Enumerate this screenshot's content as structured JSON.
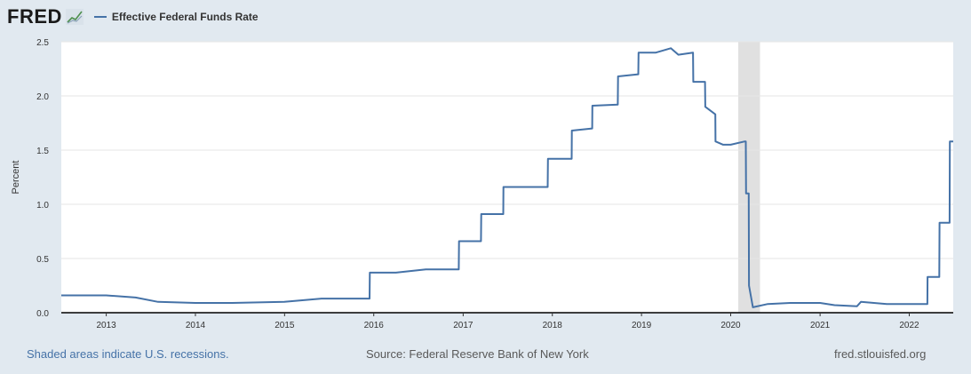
{
  "header": {
    "logo_text": "FRED",
    "series_label": "Effective Federal Funds Rate"
  },
  "footer": {
    "recession_note": "Shaded areas indicate U.S. recessions.",
    "source": "Source: Federal Reserve Bank of New York",
    "site": "fred.stlouisfed.org"
  },
  "colors": {
    "series": "#4572a7",
    "background": "#e1e9f0",
    "recession_shade": "#e0e0e0"
  },
  "chart_data": {
    "type": "line",
    "title": "",
    "xlabel": "",
    "ylabel": "Percent",
    "ylim": [
      0,
      2.5
    ],
    "yticks": [
      0.0,
      0.5,
      1.0,
      1.5,
      2.0,
      2.5
    ],
    "ytick_labels": [
      "0.0",
      "0.5",
      "1.0",
      "1.5",
      "2.0",
      "2.5"
    ],
    "xlim": [
      "2012-07-01",
      "2022-06-30"
    ],
    "xticks": [
      2013,
      2014,
      2015,
      2016,
      2017,
      2018,
      2019,
      2020,
      2021,
      2022
    ],
    "xtick_labels": [
      "2013",
      "2014",
      "2015",
      "2016",
      "2017",
      "2018",
      "2019",
      "2020",
      "2021",
      "2022"
    ],
    "grid": true,
    "legend_position": "top-left",
    "recessions": [
      {
        "start": "2020-02-01",
        "end": "2020-04-30"
      }
    ],
    "series": [
      {
        "name": "Effective Federal Funds Rate",
        "points": [
          [
            "2012-07-01",
            0.16
          ],
          [
            "2012-12-31",
            0.16
          ],
          [
            "2013-01-01",
            0.16
          ],
          [
            "2013-05-01",
            0.14
          ],
          [
            "2013-08-01",
            0.1
          ],
          [
            "2013-12-31",
            0.09
          ],
          [
            "2014-06-01",
            0.09
          ],
          [
            "2014-12-31",
            0.1
          ],
          [
            "2015-06-01",
            0.13
          ],
          [
            "2015-12-15",
            0.13
          ],
          [
            "2015-12-16",
            0.37
          ],
          [
            "2016-04-01",
            0.37
          ],
          [
            "2016-08-01",
            0.4
          ],
          [
            "2016-12-14",
            0.4
          ],
          [
            "2016-12-15",
            0.66
          ],
          [
            "2017-03-15",
            0.66
          ],
          [
            "2017-03-16",
            0.91
          ],
          [
            "2017-06-14",
            0.91
          ],
          [
            "2017-06-15",
            1.16
          ],
          [
            "2017-12-13",
            1.16
          ],
          [
            "2017-12-14",
            1.42
          ],
          [
            "2018-03-21",
            1.42
          ],
          [
            "2018-03-22",
            1.68
          ],
          [
            "2018-06-13",
            1.7
          ],
          [
            "2018-06-14",
            1.91
          ],
          [
            "2018-09-26",
            1.92
          ],
          [
            "2018-09-27",
            2.18
          ],
          [
            "2018-12-19",
            2.2
          ],
          [
            "2018-12-20",
            2.4
          ],
          [
            "2019-03-01",
            2.4
          ],
          [
            "2019-05-01",
            2.44
          ],
          [
            "2019-06-01",
            2.38
          ],
          [
            "2019-07-31",
            2.4
          ],
          [
            "2019-08-01",
            2.13
          ],
          [
            "2019-09-18",
            2.13
          ],
          [
            "2019-09-19",
            1.9
          ],
          [
            "2019-10-30",
            1.83
          ],
          [
            "2019-10-31",
            1.58
          ],
          [
            "2019-12-01",
            1.55
          ],
          [
            "2020-01-01",
            1.55
          ],
          [
            "2020-02-28",
            1.58
          ],
          [
            "2020-03-03",
            1.58
          ],
          [
            "2020-03-04",
            1.1
          ],
          [
            "2020-03-15",
            1.1
          ],
          [
            "2020-03-16",
            0.25
          ],
          [
            "2020-04-01",
            0.05
          ],
          [
            "2020-06-01",
            0.08
          ],
          [
            "2020-09-01",
            0.09
          ],
          [
            "2021-01-01",
            0.09
          ],
          [
            "2021-03-01",
            0.07
          ],
          [
            "2021-06-01",
            0.06
          ],
          [
            "2021-06-17",
            0.1
          ],
          [
            "2021-10-01",
            0.08
          ],
          [
            "2022-03-16",
            0.08
          ],
          [
            "2022-03-17",
            0.33
          ],
          [
            "2022-05-04",
            0.33
          ],
          [
            "2022-05-05",
            0.83
          ],
          [
            "2022-06-15",
            0.83
          ],
          [
            "2022-06-16",
            1.58
          ],
          [
            "2022-06-30",
            1.58
          ]
        ]
      }
    ]
  }
}
